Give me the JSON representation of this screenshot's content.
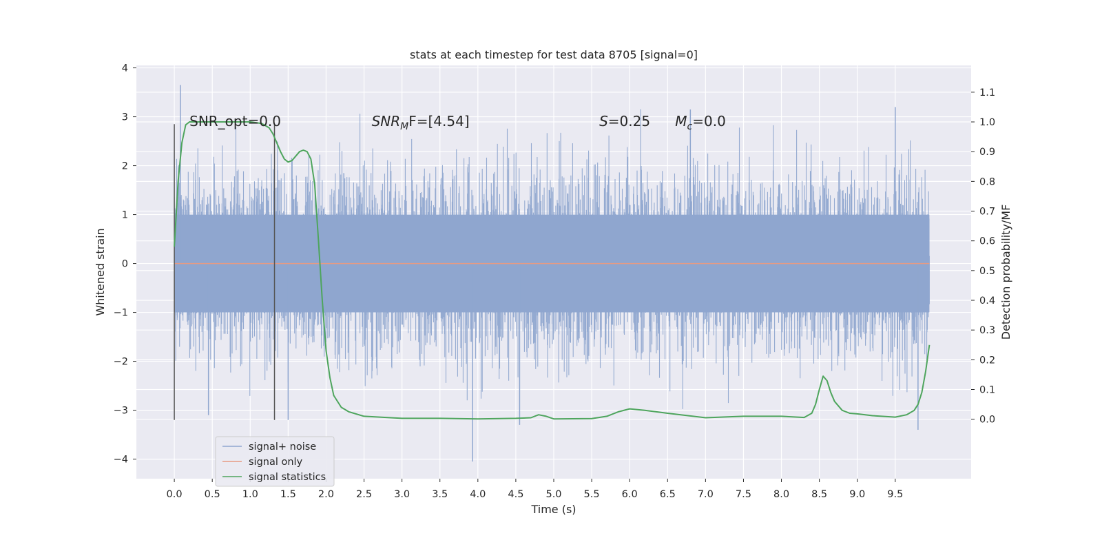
{
  "chart_data": {
    "type": "line",
    "title": "stats at each timestep for test data 8705 [signal=0]",
    "xlabel": "Time (s)",
    "ylabel": "Whitened strain",
    "y2label": "Detection probability/MF",
    "xlim": [
      -0.5,
      10.5
    ],
    "ylim": [
      -4.4,
      4.05
    ],
    "y2lim": [
      -0.2,
      1.19
    ],
    "x_ticks": [
      "0.0",
      "0.5",
      "1.0",
      "1.5",
      "2.0",
      "2.5",
      "3.0",
      "3.5",
      "4.0",
      "4.5",
      "5.0",
      "5.5",
      "6.0",
      "6.5",
      "7.0",
      "7.5",
      "8.0",
      "8.5",
      "9.0",
      "9.5"
    ],
    "y_ticks": [
      "4",
      "3",
      "2",
      "1",
      "0",
      "−1",
      "−2",
      "−3",
      "−4"
    ],
    "y2_ticks": [
      "1.1",
      "1.0",
      "0.9",
      "0.8",
      "0.7",
      "0.6",
      "0.5",
      "0.4",
      "0.3",
      "0.2",
      "0.1",
      "0.0"
    ],
    "grid": true,
    "legend_placement": "lower-left",
    "series": [
      {
        "name": "signal+ noise",
        "color": "#8fa6cf",
        "envelope": {
          "x": [
            0.0,
            0.5,
            1.0,
            1.5,
            2.0,
            2.5,
            3.0,
            3.5,
            4.0,
            4.5,
            5.0,
            5.5,
            6.0,
            6.5,
            7.0,
            7.5,
            8.0,
            8.5,
            9.0,
            9.5,
            9.95
          ],
          "typical_abs": 1.1,
          "spike_max": 3.65,
          "spike_min": -4.05
        }
      },
      {
        "name": "signal only",
        "color": "#e79a82",
        "x": [
          0.0,
          9.95
        ],
        "y": [
          0.0,
          0.0
        ]
      },
      {
        "name": "signal statistics",
        "color": "#4ea55d",
        "axis": "right",
        "x": [
          0.0,
          0.05,
          0.1,
          0.15,
          0.2,
          0.3,
          0.5,
          0.8,
          1.0,
          1.15,
          1.25,
          1.3,
          1.35,
          1.4,
          1.45,
          1.5,
          1.55,
          1.6,
          1.65,
          1.7,
          1.75,
          1.8,
          1.85,
          1.9,
          1.95,
          2.0,
          2.05,
          2.1,
          2.2,
          2.3,
          2.5,
          3.0,
          3.5,
          4.0,
          4.5,
          4.7,
          4.8,
          4.9,
          5.0,
          5.5,
          5.7,
          5.85,
          6.0,
          6.2,
          6.5,
          7.0,
          7.5,
          8.0,
          8.3,
          8.4,
          8.45,
          8.5,
          8.55,
          8.6,
          8.65,
          8.7,
          8.8,
          8.9,
          9.0,
          9.2,
          9.5,
          9.65,
          9.75,
          9.8,
          9.85,
          9.9,
          9.95
        ],
        "y": [
          0.58,
          0.8,
          0.93,
          0.99,
          1.0,
          1.0,
          1.0,
          1.0,
          1.0,
          0.995,
          0.98,
          0.96,
          0.93,
          0.9,
          0.875,
          0.865,
          0.87,
          0.885,
          0.9,
          0.905,
          0.9,
          0.875,
          0.79,
          0.6,
          0.4,
          0.23,
          0.14,
          0.08,
          0.04,
          0.025,
          0.01,
          0.003,
          0.003,
          0.001,
          0.003,
          0.005,
          0.015,
          0.01,
          0.001,
          0.002,
          0.01,
          0.025,
          0.035,
          0.03,
          0.02,
          0.005,
          0.01,
          0.01,
          0.006,
          0.02,
          0.05,
          0.1,
          0.145,
          0.13,
          0.09,
          0.06,
          0.03,
          0.02,
          0.018,
          0.012,
          0.007,
          0.015,
          0.03,
          0.05,
          0.09,
          0.16,
          0.25
        ]
      }
    ],
    "vlines": [
      {
        "x": 0.0,
        "ymin": -3.2,
        "ymax": 2.85,
        "color": "#555555"
      },
      {
        "x": 1.32,
        "ymin": -3.2,
        "ymax": 2.85,
        "color": "#555555"
      }
    ],
    "annotations": [
      {
        "id": "snr_opt",
        "text": "SNR_opt=0.0",
        "x": 0.2,
        "y": 2.92
      },
      {
        "id": "snr_mf",
        "text": "SNR",
        "sub": "M",
        "rest": "F=[4.54]",
        "x": 2.6,
        "y": 2.92
      },
      {
        "id": "s",
        "text": "S",
        "rest": "=0.25",
        "x": 5.6,
        "y": 2.92
      },
      {
        "id": "mc",
        "text": "M",
        "sub": "c",
        "rest": "=0.0",
        "x": 6.6,
        "y": 2.92
      }
    ]
  }
}
